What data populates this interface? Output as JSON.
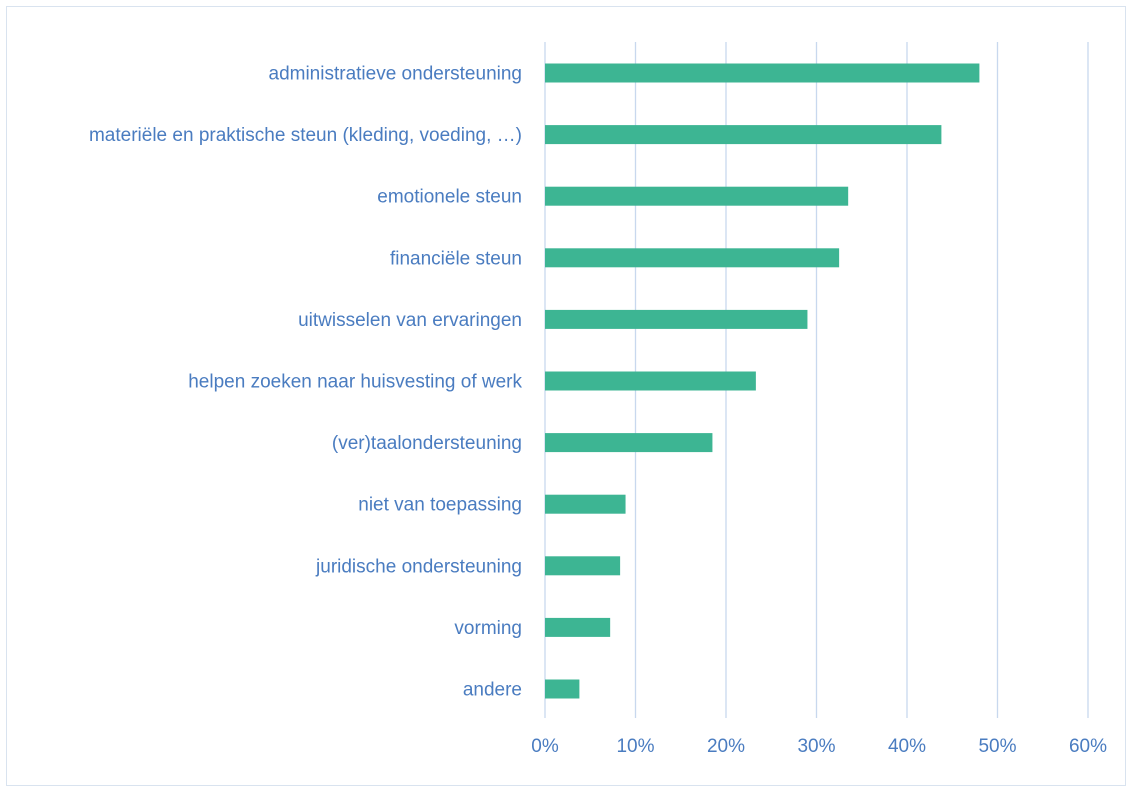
{
  "chart_data": {
    "type": "bar",
    "orientation": "horizontal",
    "title": "",
    "xlabel": "",
    "ylabel": "",
    "categories": [
      "administratieve ondersteuning",
      "materiële en praktische steun (kleding, voeding, …)",
      "emotionele steun",
      "financiële steun",
      "uitwisselen van ervaringen",
      "helpen zoeken naar huisvesting of werk",
      "(ver)taalondersteuning",
      "niet van toepassing",
      "juridische ondersteuning",
      "vorming",
      "andere"
    ],
    "values": [
      48.0,
      43.8,
      33.5,
      32.5,
      29.0,
      23.3,
      18.5,
      8.9,
      8.3,
      7.2,
      3.8
    ],
    "xlim": [
      0,
      60
    ],
    "ticks": [
      0,
      10,
      20,
      30,
      40,
      50,
      60
    ],
    "tick_labels": [
      "0%",
      "10%",
      "20%",
      "30%",
      "40%",
      "50%",
      "60%"
    ],
    "grid": "vertical",
    "legend": "none",
    "colors": {
      "bar": "#3db593",
      "label_text": "#4a7cc0",
      "grid": "#c8d8ee",
      "frame": "#d9e3ef"
    }
  }
}
